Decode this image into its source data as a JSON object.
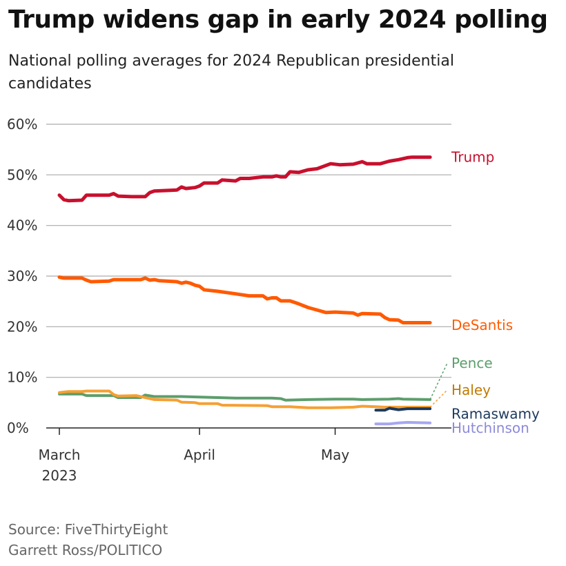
{
  "title": "Trump widens gap in early 2024 polling",
  "subtitle": "National polling averages for 2024 Republican presidential candidates",
  "source": "Source: FiveThirtyEight",
  "credit": "Garrett Ross/POLITICO",
  "chart_data": {
    "type": "line",
    "x_start": "2023-03-01",
    "x_range": [
      "2023-03-01",
      "2023-05-24"
    ],
    "ylim": [
      0,
      60
    ],
    "yticks": [
      0,
      10,
      20,
      30,
      40,
      50,
      60
    ],
    "ytick_labels": [
      "0%",
      "10%",
      "20%",
      "30%",
      "40%",
      "50%",
      "60%"
    ],
    "xticks": [
      {
        "date": "2023-03-01",
        "label": "March",
        "sub": "2023"
      },
      {
        "date": "2023-04-01",
        "label": "April",
        "sub": ""
      },
      {
        "date": "2023-05-01",
        "label": "May",
        "sub": ""
      }
    ],
    "grid": true,
    "series": [
      {
        "name": "Trump",
        "color": "#c8102e",
        "label_y": 53.5,
        "points": [
          [
            "2023-03-01",
            46
          ],
          [
            "2023-03-02",
            45.1
          ],
          [
            "2023-03-03",
            44.9
          ],
          [
            "2023-03-06",
            45
          ],
          [
            "2023-03-07",
            46
          ],
          [
            "2023-03-12",
            46
          ],
          [
            "2023-03-13",
            46.3
          ],
          [
            "2023-03-14",
            45.8
          ],
          [
            "2023-03-17",
            45.7
          ],
          [
            "2023-03-20",
            45.7
          ],
          [
            "2023-03-21",
            46.5
          ],
          [
            "2023-03-22",
            46.8
          ],
          [
            "2023-03-27",
            47
          ],
          [
            "2023-03-28",
            47.6
          ],
          [
            "2023-03-29",
            47.3
          ],
          [
            "2023-03-31",
            47.5
          ],
          [
            "2023-04-01",
            47.8
          ],
          [
            "2023-04-02",
            48.4
          ],
          [
            "2023-04-05",
            48.4
          ],
          [
            "2023-04-06",
            49
          ],
          [
            "2023-04-09",
            48.8
          ],
          [
            "2023-04-10",
            49.3
          ],
          [
            "2023-04-12",
            49.3
          ],
          [
            "2023-04-15",
            49.6
          ],
          [
            "2023-04-17",
            49.6
          ],
          [
            "2023-04-18",
            49.8
          ],
          [
            "2023-04-19",
            49.6
          ],
          [
            "2023-04-20",
            49.6
          ],
          [
            "2023-04-21",
            50.6
          ],
          [
            "2023-04-23",
            50.5
          ],
          [
            "2023-04-25",
            51
          ],
          [
            "2023-04-27",
            51.2
          ],
          [
            "2023-04-30",
            52.2
          ],
          [
            "2023-05-02",
            52
          ],
          [
            "2023-05-05",
            52.1
          ],
          [
            "2023-05-07",
            52.6
          ],
          [
            "2023-05-08",
            52.2
          ],
          [
            "2023-05-11",
            52.2
          ],
          [
            "2023-05-13",
            52.7
          ],
          [
            "2023-05-15",
            53
          ],
          [
            "2023-05-17",
            53.4
          ],
          [
            "2023-05-18",
            53.5
          ],
          [
            "2023-05-22",
            53.5
          ]
        ]
      },
      {
        "name": "DeSantis",
        "color": "#ff5a00",
        "label_y": 20.3,
        "points": [
          [
            "2023-03-01",
            29.8
          ],
          [
            "2023-03-02",
            29.6
          ],
          [
            "2023-03-06",
            29.6
          ],
          [
            "2023-03-07",
            29.2
          ],
          [
            "2023-03-08",
            28.9
          ],
          [
            "2023-03-12",
            29
          ],
          [
            "2023-03-13",
            29.3
          ],
          [
            "2023-03-19",
            29.3
          ],
          [
            "2023-03-20",
            29.6
          ],
          [
            "2023-03-21",
            29.2
          ],
          [
            "2023-03-22",
            29.3
          ],
          [
            "2023-03-23",
            29.1
          ],
          [
            "2023-03-27",
            28.9
          ],
          [
            "2023-03-28",
            28.6
          ],
          [
            "2023-03-29",
            28.8
          ],
          [
            "2023-03-30",
            28.6
          ],
          [
            "2023-03-31",
            28.2
          ],
          [
            "2023-04-01",
            28
          ],
          [
            "2023-04-02",
            27.3
          ],
          [
            "2023-04-05",
            27
          ],
          [
            "2023-04-09",
            26.5
          ],
          [
            "2023-04-12",
            26.1
          ],
          [
            "2023-04-15",
            26.1
          ],
          [
            "2023-04-16",
            25.5
          ],
          [
            "2023-04-17",
            25.7
          ],
          [
            "2023-04-18",
            25.7
          ],
          [
            "2023-04-19",
            25.1
          ],
          [
            "2023-04-21",
            25.1
          ],
          [
            "2023-04-23",
            24.5
          ],
          [
            "2023-04-25",
            23.8
          ],
          [
            "2023-04-27",
            23.3
          ],
          [
            "2023-04-29",
            22.8
          ],
          [
            "2023-05-01",
            22.9
          ],
          [
            "2023-05-05",
            22.7
          ],
          [
            "2023-05-06",
            22.3
          ],
          [
            "2023-05-07",
            22.6
          ],
          [
            "2023-05-11",
            22.5
          ],
          [
            "2023-05-12",
            21.8
          ],
          [
            "2023-05-13",
            21.4
          ],
          [
            "2023-05-15",
            21.3
          ],
          [
            "2023-05-16",
            20.8
          ],
          [
            "2023-05-22",
            20.8
          ]
        ]
      },
      {
        "name": "Pence",
        "color": "#5c9e6c",
        "label_y": 12.8,
        "points": [
          [
            "2023-03-01",
            6.7
          ],
          [
            "2023-03-06",
            6.7
          ],
          [
            "2023-03-07",
            6.4
          ],
          [
            "2023-03-13",
            6.4
          ],
          [
            "2023-03-14",
            6
          ],
          [
            "2023-03-19",
            6
          ],
          [
            "2023-03-20",
            6.5
          ],
          [
            "2023-03-22",
            6.2
          ],
          [
            "2023-03-28",
            6.2
          ],
          [
            "2023-04-05",
            6
          ],
          [
            "2023-04-09",
            5.9
          ],
          [
            "2023-04-17",
            5.9
          ],
          [
            "2023-04-19",
            5.8
          ],
          [
            "2023-04-20",
            5.5
          ],
          [
            "2023-04-25",
            5.6
          ],
          [
            "2023-05-01",
            5.7
          ],
          [
            "2023-05-05",
            5.7
          ],
          [
            "2023-05-07",
            5.6
          ],
          [
            "2023-05-13",
            5.7
          ],
          [
            "2023-05-15",
            5.8
          ],
          [
            "2023-05-16",
            5.7
          ],
          [
            "2023-05-22",
            5.6
          ]
        ]
      },
      {
        "name": "Haley",
        "color": "#f5a033",
        "label_color": "#c07a00",
        "label_y": 7.5,
        "points": [
          [
            "2023-03-01",
            7
          ],
          [
            "2023-03-03",
            7.2
          ],
          [
            "2023-03-06",
            7.2
          ],
          [
            "2023-03-07",
            7.3
          ],
          [
            "2023-03-12",
            7.3
          ],
          [
            "2023-03-13",
            6.6
          ],
          [
            "2023-03-14",
            6.3
          ],
          [
            "2023-03-18",
            6.4
          ],
          [
            "2023-03-22",
            5.6
          ],
          [
            "2023-03-27",
            5.5
          ],
          [
            "2023-03-28",
            5.1
          ],
          [
            "2023-03-31",
            5
          ],
          [
            "2023-04-01",
            4.8
          ],
          [
            "2023-04-05",
            4.8
          ],
          [
            "2023-04-06",
            4.5
          ],
          [
            "2023-04-16",
            4.4
          ],
          [
            "2023-04-17",
            4.2
          ],
          [
            "2023-04-21",
            4.2
          ],
          [
            "2023-04-25",
            4
          ],
          [
            "2023-04-30",
            4
          ],
          [
            "2023-05-05",
            4.1
          ],
          [
            "2023-05-07",
            4.3
          ],
          [
            "2023-05-10",
            4.2
          ],
          [
            "2023-05-12",
            4.1
          ],
          [
            "2023-05-16",
            4.1
          ],
          [
            "2023-05-22",
            4.1
          ]
        ]
      },
      {
        "name": "Ramaswamy",
        "color": "#1c3a5e",
        "label_y": 2.8,
        "points": [
          [
            "2023-05-10",
            3.5
          ],
          [
            "2023-05-12",
            3.5
          ],
          [
            "2023-05-13",
            3.9
          ],
          [
            "2023-05-15",
            3.6
          ],
          [
            "2023-05-17",
            3.8
          ],
          [
            "2023-05-22",
            3.8
          ]
        ]
      },
      {
        "name": "Hutchinson",
        "color": "#a7a6f0",
        "label_color": "#8c8ad9",
        "label_y": 0,
        "points": [
          [
            "2023-05-10",
            0.8
          ],
          [
            "2023-05-13",
            0.8
          ],
          [
            "2023-05-15",
            1
          ],
          [
            "2023-05-17",
            1.1
          ],
          [
            "2023-05-22",
            1
          ]
        ]
      }
    ]
  }
}
